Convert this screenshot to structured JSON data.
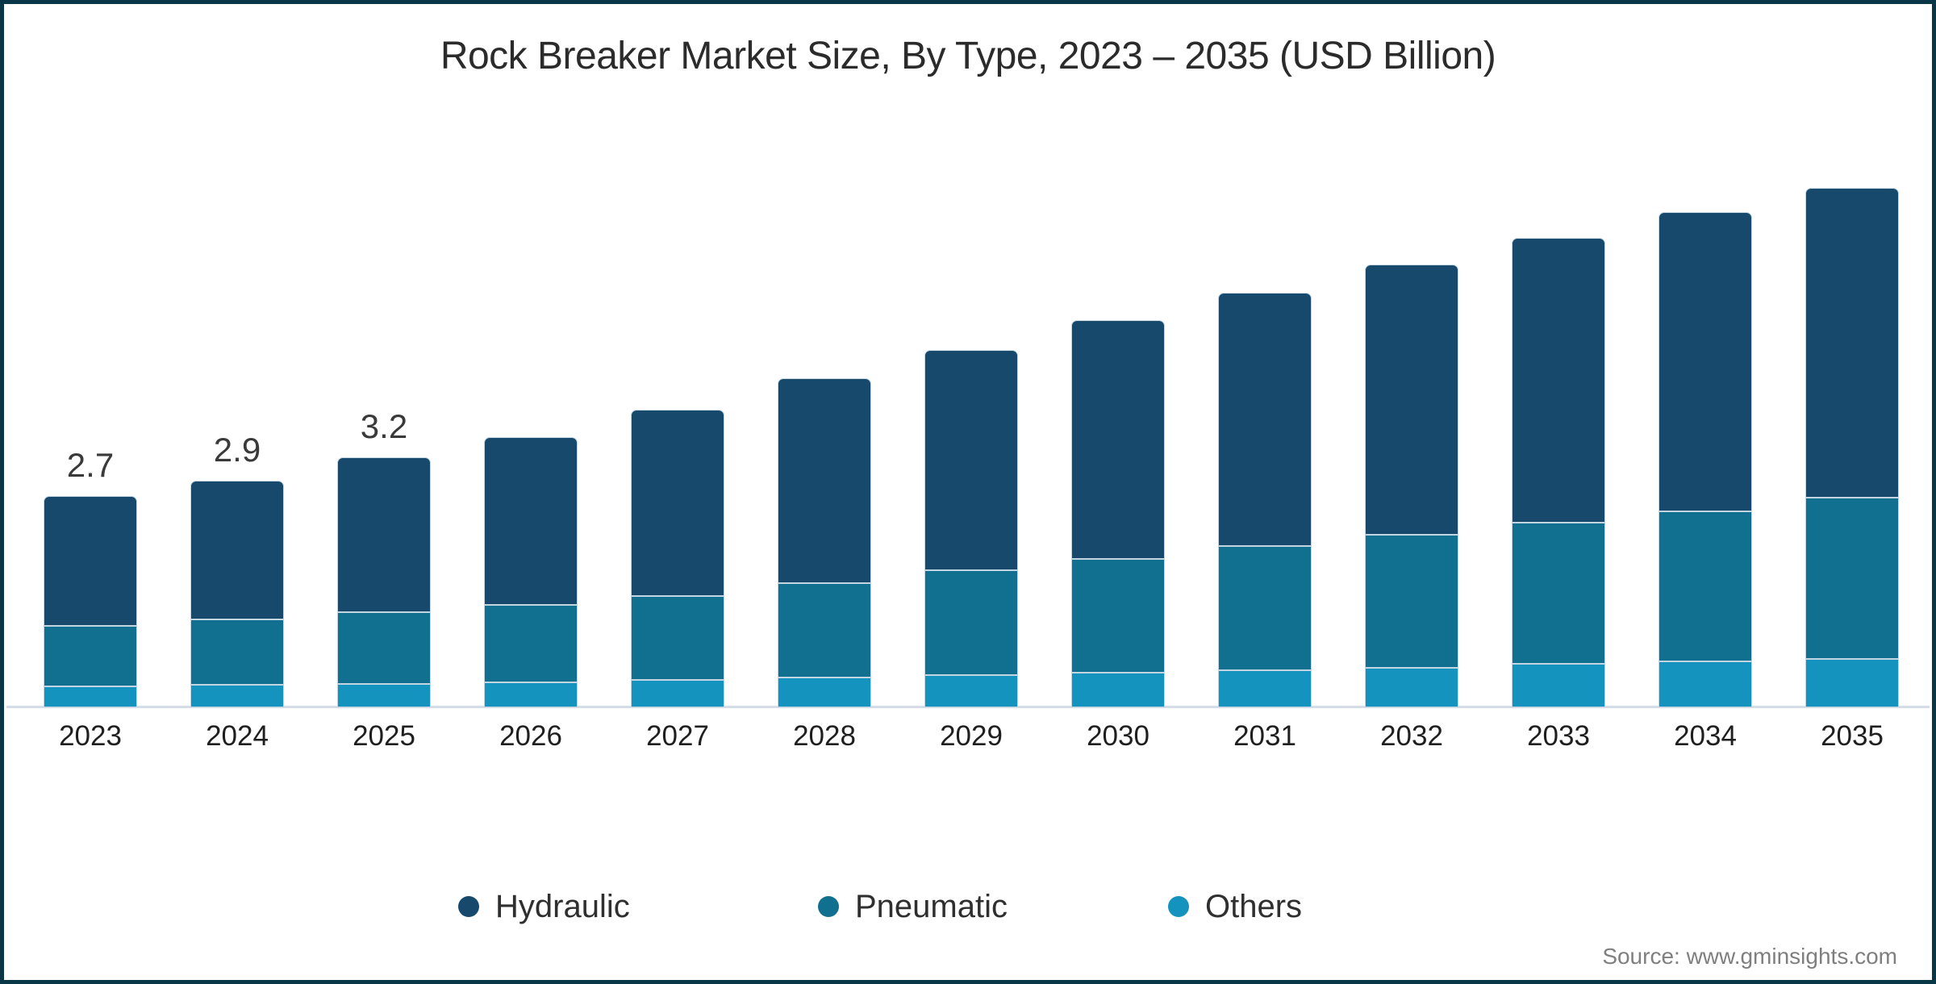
{
  "title": {
    "text": "Rock Breaker Market Size, By Type, 2023 – 2035 (USD Billion)"
  },
  "source": {
    "text": "Source: www.gminsights.com"
  },
  "colors": {
    "frame_border": "#0A3747",
    "axis_line": "#D5DEE8",
    "segment_stroke": "#C2D5E0",
    "title_text": "#2B2B2B",
    "axis_label_text": "#1F1F1F",
    "data_label_text": "#3A3A3A",
    "source_text": "#7F7F7F",
    "hydraulic": "#17496C",
    "pneumatic": "#116F90",
    "others": "#1493BF"
  },
  "legend": {
    "items": [
      {
        "label": "Hydraulic",
        "color": "#17496C"
      },
      {
        "label": "Pneumatic",
        "color": "#116F90"
      },
      {
        "label": "Others",
        "color": "#1493BF"
      }
    ]
  },
  "chart_data": {
    "type": "bar",
    "stacked": true,
    "title": "Rock Breaker Market Size, By Type, 2023 – 2035 (USD Billion)",
    "unit": "USD Billion",
    "categories": [
      "2023",
      "2024",
      "2025",
      "2026",
      "2027",
      "2028",
      "2029",
      "2030",
      "2031",
      "2032",
      "2033",
      "2034",
      "2035"
    ],
    "series": [
      {
        "name": "Hydraulic",
        "color": "#17496C",
        "values": [
          1.66,
          1.78,
          1.98,
          2.14,
          2.38,
          2.62,
          2.82,
          3.05,
          3.24,
          3.45,
          3.64,
          3.82,
          3.96
        ]
      },
      {
        "name": "Pneumatic",
        "color": "#116F90",
        "values": [
          0.77,
          0.83,
          0.92,
          0.99,
          1.07,
          1.21,
          1.34,
          1.46,
          1.59,
          1.7,
          1.8,
          1.92,
          2.06
        ]
      },
      {
        "name": "Others",
        "color": "#1493BF",
        "values": [
          0.27,
          0.29,
          0.3,
          0.32,
          0.35,
          0.38,
          0.41,
          0.44,
          0.47,
          0.51,
          0.56,
          0.59,
          0.62
        ]
      }
    ],
    "totals": [
      2.7,
      2.9,
      3.2,
      3.45,
      3.8,
      4.21,
      4.57,
      4.95,
      5.3,
      5.66,
      6.0,
      6.33,
      6.64
    ],
    "shown_totals": {
      "2023": "2.7",
      "2024": "2.9",
      "2025": "3.2"
    },
    "xlabel": "",
    "ylabel": "",
    "ylim": [
      0,
      7
    ],
    "grid": false,
    "legend_position": "bottom"
  }
}
